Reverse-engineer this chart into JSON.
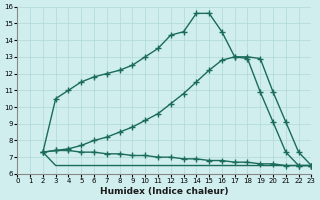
{
  "xlabel": "Humidex (Indice chaleur)",
  "bg_color": "#d0eeee",
  "grid_color": "#b0d8d8",
  "line_color": "#1a6b5a",
  "xlim": [
    0,
    23
  ],
  "ylim": [
    6,
    16
  ],
  "xticks": [
    0,
    1,
    2,
    3,
    4,
    5,
    6,
    7,
    8,
    9,
    10,
    11,
    12,
    13,
    14,
    15,
    16,
    17,
    18,
    19,
    20,
    21,
    22,
    23
  ],
  "yticks": [
    6,
    7,
    8,
    9,
    10,
    11,
    12,
    13,
    14,
    15,
    16
  ],
  "line1_x": [
    2,
    3,
    4,
    5,
    6,
    7,
    8,
    9,
    10,
    11,
    12,
    13,
    14,
    15,
    16,
    17,
    18,
    19,
    20,
    21,
    22,
    23
  ],
  "line1_y": [
    7.3,
    10.5,
    11.0,
    11.5,
    11.8,
    12.0,
    12.2,
    12.5,
    13.0,
    13.5,
    14.3,
    14.5,
    15.6,
    15.6,
    14.5,
    13.0,
    12.9,
    10.9,
    9.1,
    7.3,
    6.5,
    6.5
  ],
  "line2_x": [
    2,
    3,
    4,
    5,
    6,
    7,
    8,
    9,
    10,
    11,
    12,
    13,
    14,
    15,
    16,
    17,
    18,
    19,
    20,
    21,
    22,
    23
  ],
  "line2_y": [
    7.3,
    7.4,
    7.5,
    7.7,
    8.0,
    8.2,
    8.5,
    8.8,
    9.2,
    9.6,
    10.2,
    10.8,
    11.5,
    12.2,
    12.8,
    13.0,
    13.0,
    12.9,
    10.9,
    9.1,
    7.3,
    6.5
  ],
  "line3_x": [
    2,
    3,
    4,
    5,
    6,
    7,
    8,
    9,
    10,
    11,
    12,
    13,
    14,
    15,
    16,
    17,
    18,
    19,
    20,
    21,
    22,
    23
  ],
  "line3_y": [
    7.3,
    7.4,
    7.4,
    7.3,
    7.3,
    7.2,
    7.2,
    7.1,
    7.1,
    7.0,
    7.0,
    6.9,
    6.9,
    6.8,
    6.8,
    6.7,
    6.7,
    6.6,
    6.6,
    6.5,
    6.5,
    6.5
  ],
  "line4_x": [
    2,
    3,
    23
  ],
  "line4_y": [
    7.3,
    6.5,
    6.5
  ],
  "markersize": 4,
  "linewidth": 1.0
}
